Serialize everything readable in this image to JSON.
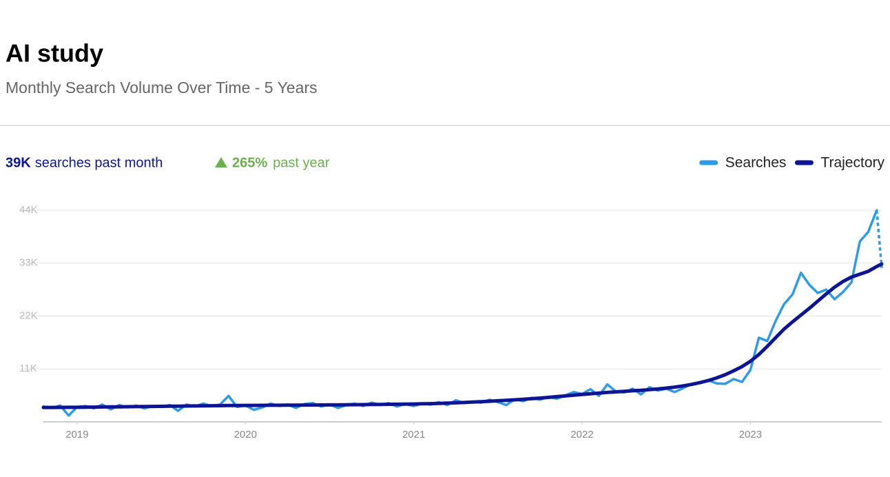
{
  "chart_data": {
    "type": "line",
    "title": "AI study",
    "subtitle": "Monthly Search  Volume Over  Time -  5 Years",
    "stats": {
      "month_value": "39K",
      "month_text": "searches past month",
      "change_value": "265%",
      "change_text": "past year"
    },
    "legend": "top-right",
    "grid": true,
    "last_segment_dashed": "Searches",
    "xlim": [
      2018.8,
      2023.78
    ],
    "xticks": [
      2019,
      2020,
      2021,
      2022,
      2023
    ],
    "ylim": [
      0,
      44000
    ],
    "yticks": [
      {
        "value": 11000,
        "label": "11K"
      },
      {
        "value": 22000,
        "label": "22K"
      },
      {
        "value": 33000,
        "label": "33K"
      },
      {
        "value": 44000,
        "label": "44K"
      }
    ],
    "x": [
      2018.8,
      2018.85,
      2018.9,
      2018.95,
      2019,
      2019.05,
      2019.1,
      2019.15,
      2019.2,
      2019.25,
      2019.3,
      2019.35,
      2019.4,
      2019.45,
      2019.5,
      2019.55,
      2019.6,
      2019.65,
      2019.7,
      2019.75,
      2019.8,
      2019.85,
      2019.9,
      2019.95,
      2020,
      2020.05,
      2020.1,
      2020.15,
      2020.2,
      2020.25,
      2020.3,
      2020.35,
      2020.4,
      2020.45,
      2020.5,
      2020.55,
      2020.6,
      2020.65,
      2020.7,
      2020.75,
      2020.8,
      2020.85,
      2020.9,
      2020.95,
      2021,
      2021.05,
      2021.1,
      2021.15,
      2021.2,
      2021.25,
      2021.3,
      2021.35,
      2021.4,
      2021.45,
      2021.5,
      2021.55,
      2021.6,
      2021.65,
      2021.7,
      2021.75,
      2021.8,
      2021.85,
      2021.9,
      2021.95,
      2022,
      2022.05,
      2022.1,
      2022.15,
      2022.2,
      2022.25,
      2022.3,
      2022.35,
      2022.4,
      2022.45,
      2022.5,
      2022.55,
      2022.6,
      2022.65,
      2022.7,
      2022.75,
      2022.8,
      2022.85,
      2022.9,
      2022.95,
      2023,
      2023.05,
      2023.1,
      2023.15,
      2023.2,
      2023.25,
      2023.3,
      2023.35,
      2023.4,
      2023.45,
      2023.5,
      2023.55,
      2023.6,
      2023.65,
      2023.7,
      2023.75,
      2023.78
    ],
    "series": [
      {
        "name": "Searches",
        "color": "#2e9be6",
        "values": [
          3200,
          2900,
          3400,
          1300,
          3100,
          3300,
          2800,
          3600,
          2600,
          3500,
          3000,
          3400,
          2800,
          3300,
          3100,
          3500,
          2300,
          3600,
          3200,
          3800,
          3300,
          3600,
          5400,
          3100,
          3400,
          2500,
          3000,
          3800,
          3300,
          3600,
          2900,
          3700,
          3900,
          3200,
          3600,
          2900,
          3500,
          3800,
          3300,
          4000,
          3500,
          3900,
          3200,
          3700,
          3300,
          3800,
          3600,
          4100,
          3500,
          4500,
          3900,
          4200,
          4000,
          4600,
          4100,
          3500,
          4700,
          4300,
          5000,
          4600,
          5200,
          4800,
          5500,
          6200,
          5800,
          6800,
          5400,
          7800,
          6300,
          6100,
          6900,
          5700,
          7200,
          6500,
          6900,
          6200,
          7000,
          7900,
          8200,
          8600,
          8000,
          7900,
          8900,
          8300,
          10800,
          17500,
          16800,
          21000,
          24500,
          26500,
          31000,
          28500,
          26800,
          27500,
          25500,
          27000,
          29000,
          37500,
          39500,
          44000,
          32000
        ]
      },
      {
        "name": "Trajectory",
        "color": "#0d1594",
        "values": [
          3000,
          3000,
          3010,
          3020,
          3030,
          3050,
          3070,
          3090,
          3110,
          3130,
          3150,
          3170,
          3190,
          3210,
          3230,
          3250,
          3270,
          3290,
          3310,
          3330,
          3350,
          3370,
          3390,
          3410,
          3420,
          3430,
          3440,
          3450,
          3460,
          3470,
          3480,
          3490,
          3500,
          3510,
          3520,
          3530,
          3550,
          3570,
          3590,
          3610,
          3630,
          3650,
          3670,
          3690,
          3710,
          3750,
          3790,
          3840,
          3900,
          3960,
          4030,
          4110,
          4190,
          4280,
          4380,
          4480,
          4590,
          4700,
          4820,
          4950,
          5090,
          5240,
          5390,
          5540,
          5700,
          5850,
          5990,
          6120,
          6240,
          6350,
          6460,
          6570,
          6700,
          6850,
          7020,
          7230,
          7480,
          7780,
          8150,
          8600,
          9150,
          9800,
          10600,
          11500,
          12600,
          14000,
          15700,
          17500,
          19300,
          20800,
          22200,
          23600,
          25100,
          26600,
          28000,
          29200,
          30100,
          30700,
          31300,
          32300,
          32800
        ]
      }
    ]
  }
}
